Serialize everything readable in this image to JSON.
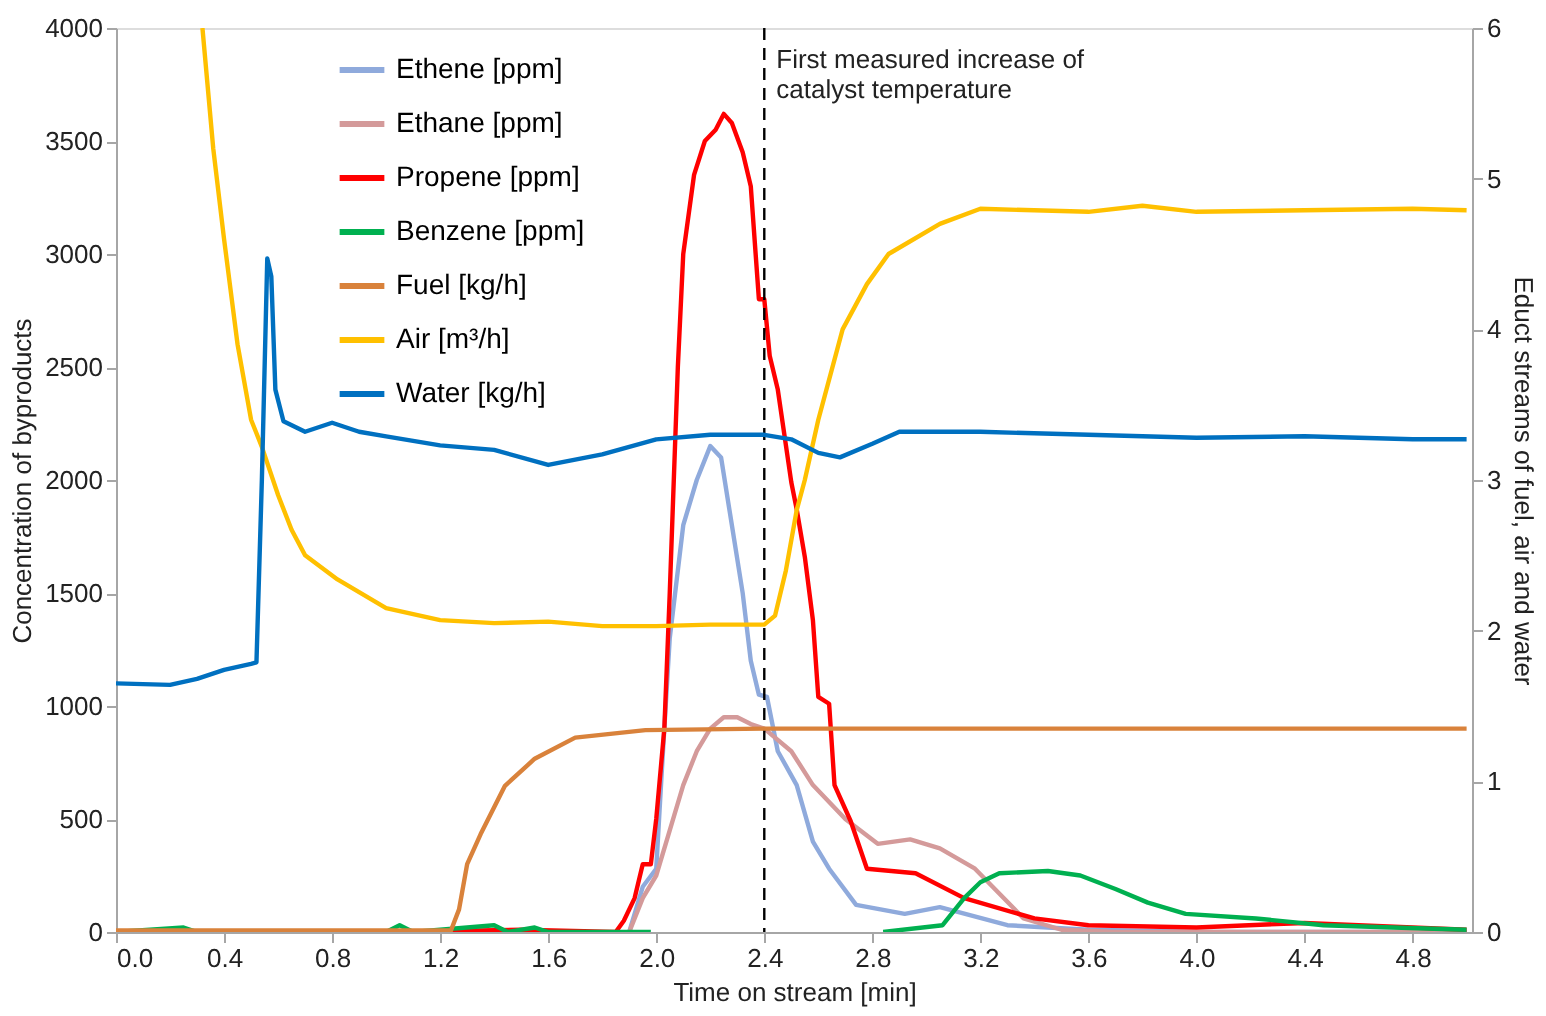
{
  "chart_data": {
    "type": "line",
    "xlabel": "Time on stream [min]",
    "ylabel": "Concentration of byproducts",
    "y2label": "Educt streams of fuel, air and water",
    "xlim": [
      0,
      5.02
    ],
    "xticks": [
      {
        "value": 0,
        "label": "0.0"
      },
      0.4,
      0.8,
      1.2,
      1.6,
      {
        "value": 2,
        "label": "2.0"
      },
      2.4,
      2.8,
      3.2,
      3.6,
      {
        "value": 4,
        "label": "4.0"
      },
      4.4,
      4.8
    ],
    "ylim": [
      0,
      4000
    ],
    "yticks": [
      0,
      500,
      1000,
      1500,
      2000,
      2500,
      3000,
      3500,
      4000
    ],
    "y2lim": [
      0,
      6
    ],
    "y2ticks": [
      0,
      1,
      2,
      3,
      4,
      5,
      6
    ],
    "grid": false,
    "legend": "top left",
    "line_style": "solid",
    "marker": "none",
    "ref_lines": [
      {
        "axis": "x",
        "value": 2.4,
        "label": "First measured increase of catalyst temperature",
        "line_style": "dashed",
        "color": "#000000"
      }
    ],
    "series": [
      {
        "name": "Ethene [ppm]",
        "color": "#8faadc",
        "x": [
          1.9,
          1.95,
          2.0,
          2.02,
          2.05,
          2.1,
          2.15,
          2.2,
          2.24,
          2.28,
          2.32,
          2.35,
          2.38,
          2.41,
          2.45,
          2.52,
          2.58,
          2.64,
          2.74,
          2.92,
          3.05,
          3.3,
          3.6,
          4.0,
          5.0
        ],
        "values": [
          0,
          200,
          280,
          700,
          1300,
          1800,
          2000,
          2150,
          2100,
          1800,
          1500,
          1200,
          1050,
          1040,
          800,
          650,
          400,
          280,
          120,
          80,
          110,
          30,
          10,
          0,
          0
        ]
      },
      {
        "name": "Ethane [ppm]",
        "color": "#d49a9a",
        "x": [
          1.9,
          1.95,
          2.0,
          2.05,
          2.1,
          2.15,
          2.2,
          2.25,
          2.3,
          2.35,
          2.4,
          2.5,
          2.58,
          2.7,
          2.82,
          2.94,
          3.05,
          3.18,
          3.36,
          3.5,
          3.7,
          5.0
        ],
        "values": [
          0,
          150,
          250,
          450,
          650,
          800,
          900,
          950,
          950,
          920,
          900,
          800,
          650,
          500,
          390,
          410,
          370,
          280,
          60,
          10,
          0,
          0
        ]
      },
      {
        "name": "Propene [ppm]",
        "color": "#ff0000",
        "x": [
          0,
          1.0,
          1.5,
          1.85,
          1.88,
          1.92,
          1.95,
          1.98,
          2.0,
          2.03,
          2.05,
          2.08,
          2.1,
          2.14,
          2.18,
          2.22,
          2.25,
          2.28,
          2.32,
          2.35,
          2.38,
          2.4,
          2.42,
          2.45,
          2.5,
          2.52,
          2.55,
          2.58,
          2.6,
          2.64,
          2.66,
          2.72,
          2.78,
          2.96,
          3.14,
          3.4,
          3.6,
          4.0,
          4.4,
          5.0
        ],
        "values": [
          0,
          0,
          10,
          0,
          50,
          150,
          300,
          300,
          500,
          900,
          1500,
          2500,
          3000,
          3350,
          3500,
          3550,
          3620,
          3580,
          3450,
          3300,
          2800,
          2800,
          2550,
          2400,
          1990,
          1870,
          1660,
          1380,
          1040,
          1010,
          650,
          490,
          280,
          260,
          150,
          60,
          30,
          20,
          40,
          10
        ]
      },
      {
        "name": "Benzene [ppm]",
        "color": "#00b050",
        "x": [
          0,
          0.25,
          0.3,
          1.0,
          1.05,
          1.1,
          1.4,
          1.45,
          1.55,
          1.6,
          1.98,
          2.4,
          2.84,
          3.06,
          3.14,
          3.2,
          3.27,
          3.45,
          3.57,
          3.7,
          3.82,
          3.96,
          4.22,
          4.47,
          4.73,
          5.0
        ],
        "values": [
          0,
          20,
          0,
          0,
          30,
          0,
          30,
          0,
          20,
          0,
          0,
          null,
          0,
          30,
          150,
          220,
          260,
          270,
          250,
          190,
          130,
          80,
          60,
          30,
          20,
          10
        ]
      },
      {
        "name": "Fuel [kg/h]",
        "color": "#d9823b",
        "axis": "y2",
        "x": [
          0,
          1.24,
          1.27,
          1.3,
          1.35,
          1.44,
          1.55,
          1.7,
          1.96,
          2.4,
          5.0
        ],
        "values": [
          0.01,
          0.01,
          0.15,
          0.45,
          0.65,
          0.97,
          1.15,
          1.29,
          1.34,
          1.35,
          1.35
        ]
      },
      {
        "name": "Air [m³/h]",
        "color": "#ffc000",
        "axis": "y2",
        "x": [
          0.32,
          0.36,
          0.4,
          0.45,
          0.5,
          0.54,
          0.6,
          0.65,
          0.7,
          0.82,
          1.0,
          1.2,
          1.4,
          1.6,
          1.8,
          2.0,
          2.2,
          2.4,
          2.44,
          2.48,
          2.52,
          2.55,
          2.6,
          2.69,
          2.78,
          2.86,
          3.05,
          3.2,
          3.6,
          3.8,
          4.0,
          4.4,
          4.8,
          5.0
        ],
        "values": [
          6.0,
          5.2,
          4.6,
          3.9,
          3.4,
          3.22,
          2.9,
          2.67,
          2.5,
          2.34,
          2.15,
          2.07,
          2.05,
          2.06,
          2.03,
          2.03,
          2.04,
          2.04,
          2.1,
          2.4,
          2.8,
          3.0,
          3.4,
          4.0,
          4.3,
          4.5,
          4.7,
          4.8,
          4.78,
          4.82,
          4.78,
          4.79,
          4.8,
          4.79
        ]
      },
      {
        "name": "Water [kg/h]",
        "color": "#0070c0",
        "axis": "y2",
        "x": [
          0,
          0.2,
          0.3,
          0.4,
          0.5,
          0.52,
          0.54,
          0.56,
          0.575,
          0.59,
          0.62,
          0.7,
          0.8,
          0.9,
          1.0,
          1.2,
          1.4,
          1.6,
          1.8,
          2.0,
          2.2,
          2.4,
          2.5,
          2.6,
          2.68,
          2.8,
          2.9,
          3.2,
          3.6,
          4.0,
          4.4,
          4.8,
          5.0
        ],
        "values": [
          1.65,
          1.64,
          1.68,
          1.74,
          1.78,
          1.79,
          3.0,
          4.47,
          4.35,
          3.6,
          3.39,
          3.32,
          3.38,
          3.32,
          3.29,
          3.23,
          3.2,
          3.1,
          3.17,
          3.27,
          3.3,
          3.3,
          3.27,
          3.18,
          3.15,
          3.24,
          3.32,
          3.32,
          3.3,
          3.28,
          3.29,
          3.27,
          3.27
        ]
      }
    ]
  }
}
